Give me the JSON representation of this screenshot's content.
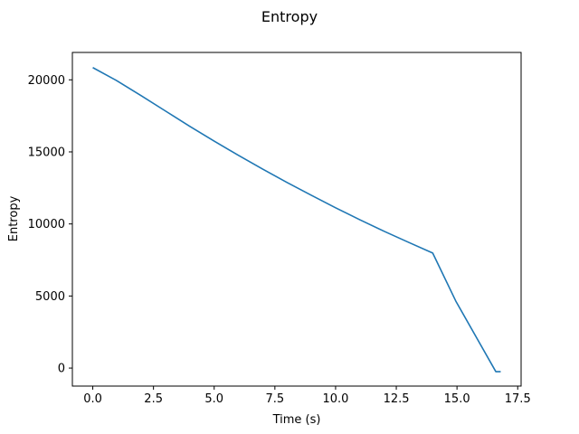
{
  "chart_data": {
    "type": "line",
    "title": "Entropy",
    "xlabel": "Time (s)",
    "ylabel": "Entropy",
    "xlim": [
      -0.84,
      17.64
    ],
    "ylim": [
      -1250,
      21900
    ],
    "xticks": [
      0.0,
      2.5,
      5.0,
      7.5,
      10.0,
      12.5,
      15.0,
      17.5
    ],
    "xtick_labels": [
      "0.0",
      "2.5",
      "5.0",
      "7.5",
      "10.0",
      "12.5",
      "15.0",
      "17.5"
    ],
    "yticks": [
      0,
      5000,
      10000,
      15000,
      20000
    ],
    "ytick_labels": [
      "0",
      "5000",
      "10000",
      "15000",
      "20000"
    ],
    "grid": false,
    "series": [
      {
        "color": "#1f77b4",
        "x": [
          0,
          1,
          2,
          3,
          4,
          5,
          6,
          7,
          8,
          9,
          10,
          11,
          12,
          13,
          14,
          14.95,
          16.6,
          16.8
        ],
        "y": [
          20850,
          19930,
          18890,
          17830,
          16770,
          15750,
          14760,
          13800,
          12880,
          11990,
          11120,
          10290,
          9490,
          8730,
          7980,
          4650,
          -250,
          -250
        ]
      }
    ]
  }
}
